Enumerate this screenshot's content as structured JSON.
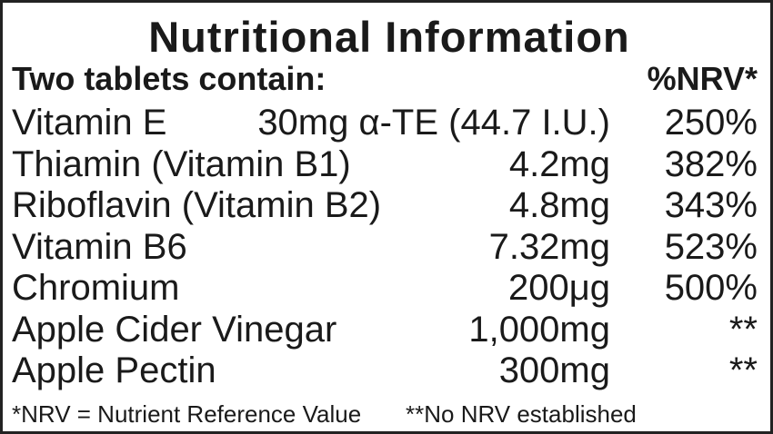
{
  "title": "Nutritional Information",
  "header": {
    "label": "Two tablets contain:",
    "nrv": "%NRV*"
  },
  "rows": [
    [
      "Vitamin E",
      "30mg α-TE (44.7 I.U.)",
      "250%"
    ],
    [
      "Thiamin (Vitamin B1)",
      "4.2mg",
      "382%"
    ],
    [
      "Riboflavin (Vitamin B2)",
      "4.8mg",
      "343%"
    ],
    [
      "Vitamin B6",
      "7.32mg",
      "523%"
    ],
    [
      "Chromium",
      "200μg",
      "500%"
    ],
    [
      "Apple Cider Vinegar",
      "1,000mg",
      "**"
    ],
    [
      "Apple Pectin",
      "300mg",
      "**"
    ]
  ],
  "footnotes": [
    "*NRV = Nutrient Reference Value",
    "**No NRV established"
  ]
}
